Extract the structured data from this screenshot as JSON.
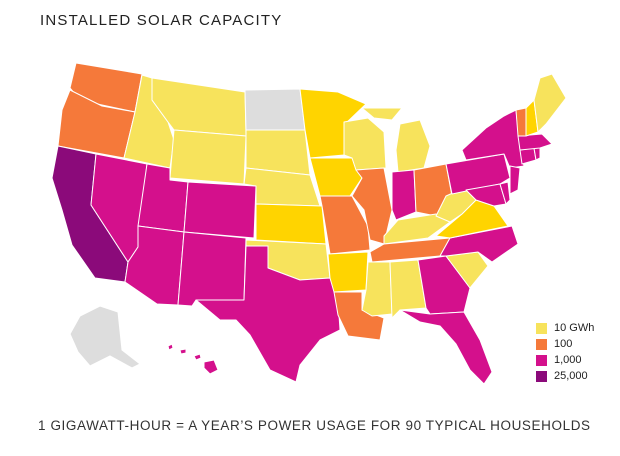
{
  "title": "INSTALLED SOLAR CAPACITY",
  "footer": "1 GIGAWATT-HOUR = A YEAR’S POWER USAGE FOR 90 TYPICAL HOUSEHOLDS",
  "colors": {
    "no_data": "#dddddd",
    "tier1": "#f7e35c",
    "tier1b": "#ffd400",
    "tier2": "#f5793a",
    "tier3": "#d4108c",
    "tier4": "#8b0a7a"
  },
  "legend": [
    {
      "label": "10 GWh",
      "color": "#f7e35c"
    },
    {
      "label": "100",
      "color": "#f5793a"
    },
    {
      "label": "1,000",
      "color": "#d4108c"
    },
    {
      "label": "25,000",
      "color": "#8b0a7a"
    }
  ]
}
